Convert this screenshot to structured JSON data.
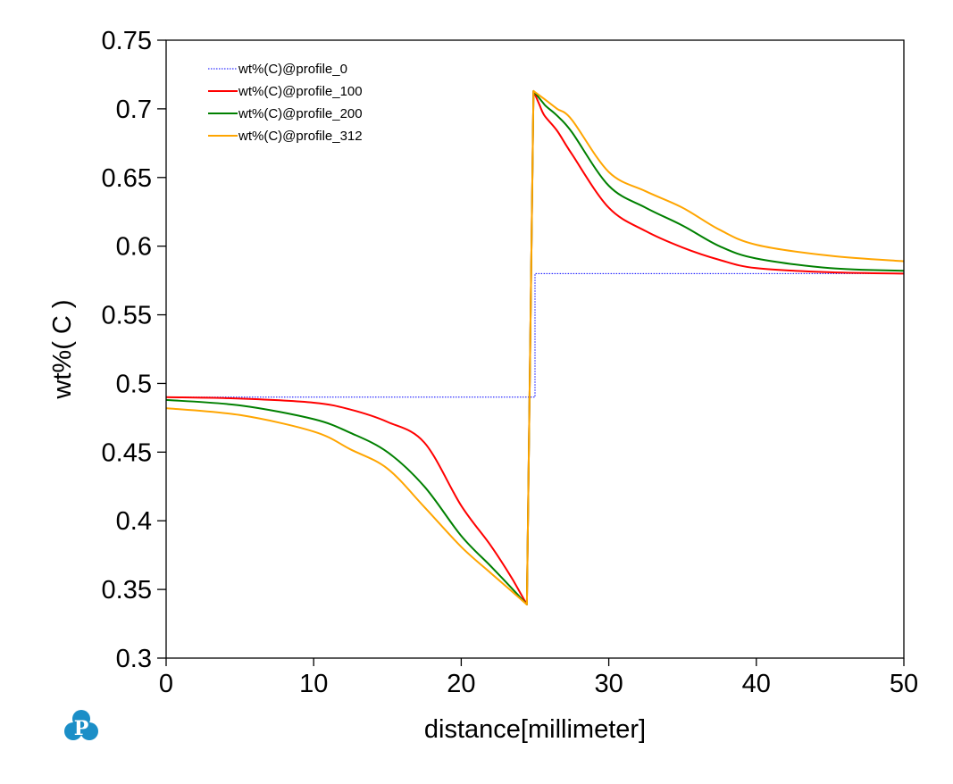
{
  "chart_data": {
    "type": "line",
    "title": "",
    "xlabel": "distance[millimeter]",
    "ylabel": "wt%( C )",
    "xlim": [
      0,
      50
    ],
    "ylim": [
      0.3,
      0.75
    ],
    "xticks": [
      0,
      10,
      20,
      30,
      40,
      50
    ],
    "xtick_labels": [
      "0",
      "10",
      "20",
      "30",
      "40",
      "50"
    ],
    "yticks": [
      0.3,
      0.35,
      0.4,
      0.45,
      0.5,
      0.55,
      0.6,
      0.65,
      0.7,
      0.75
    ],
    "ytick_labels": [
      "0.3",
      "0.35",
      "0.4",
      "0.45",
      "0.5",
      "0.55",
      "0.6",
      "0.65",
      "0.7",
      "0.75"
    ],
    "grid": false,
    "legend_position": "top-left",
    "series": [
      {
        "name": "wt%(C)@profile_0",
        "color": "#0000ff",
        "style": "dotted",
        "x": [
          0,
          25.0,
          25.0,
          50
        ],
        "y": [
          0.49,
          0.49,
          0.58,
          0.58
        ]
      },
      {
        "name": "wt%(C)@profile_100",
        "color": "#ff0000",
        "style": "solid",
        "x": [
          0,
          5,
          10,
          12.5,
          15,
          17.5,
          20,
          22,
          23.5,
          24.45,
          24.9,
          25.3,
          25.65,
          26.5,
          27.5,
          30,
          32.5,
          35,
          37.5,
          40,
          45,
          50
        ],
        "y": [
          0.49,
          0.489,
          0.486,
          0.481,
          0.472,
          0.457,
          0.411,
          0.382,
          0.357,
          0.339,
          0.713,
          0.703,
          0.695,
          0.684,
          0.667,
          0.628,
          0.611,
          0.599,
          0.59,
          0.584,
          0.581,
          0.58
        ]
      },
      {
        "name": "wt%(C)@profile_200",
        "color": "#008000",
        "style": "solid",
        "x": [
          0,
          5,
          10,
          12.5,
          15,
          17.5,
          20,
          22,
          23.5,
          24.45,
          24.9,
          25.65,
          26.5,
          27.5,
          30,
          32.5,
          35,
          37.5,
          40,
          45,
          50
        ],
        "y": [
          0.488,
          0.484,
          0.474,
          0.464,
          0.45,
          0.425,
          0.389,
          0.367,
          0.35,
          0.339,
          0.713,
          0.703,
          0.695,
          0.683,
          0.644,
          0.628,
          0.615,
          0.6,
          0.591,
          0.584,
          0.582
        ]
      },
      {
        "name": "wt%(C)@profile_312",
        "color": "#ffa500",
        "style": "solid",
        "x": [
          0,
          5,
          10,
          12.5,
          15,
          17.5,
          20,
          22,
          23.5,
          24.45,
          24.9,
          25.65,
          26.5,
          27.5,
          30,
          32.5,
          35,
          37.5,
          40,
          45,
          50
        ],
        "y": [
          0.482,
          0.477,
          0.465,
          0.452,
          0.438,
          0.41,
          0.381,
          0.362,
          0.348,
          0.339,
          0.713,
          0.707,
          0.7,
          0.692,
          0.654,
          0.64,
          0.628,
          0.612,
          0.601,
          0.593,
          0.589
        ]
      }
    ]
  },
  "logo": {
    "letter": "P",
    "color": "#1b8ec7"
  }
}
